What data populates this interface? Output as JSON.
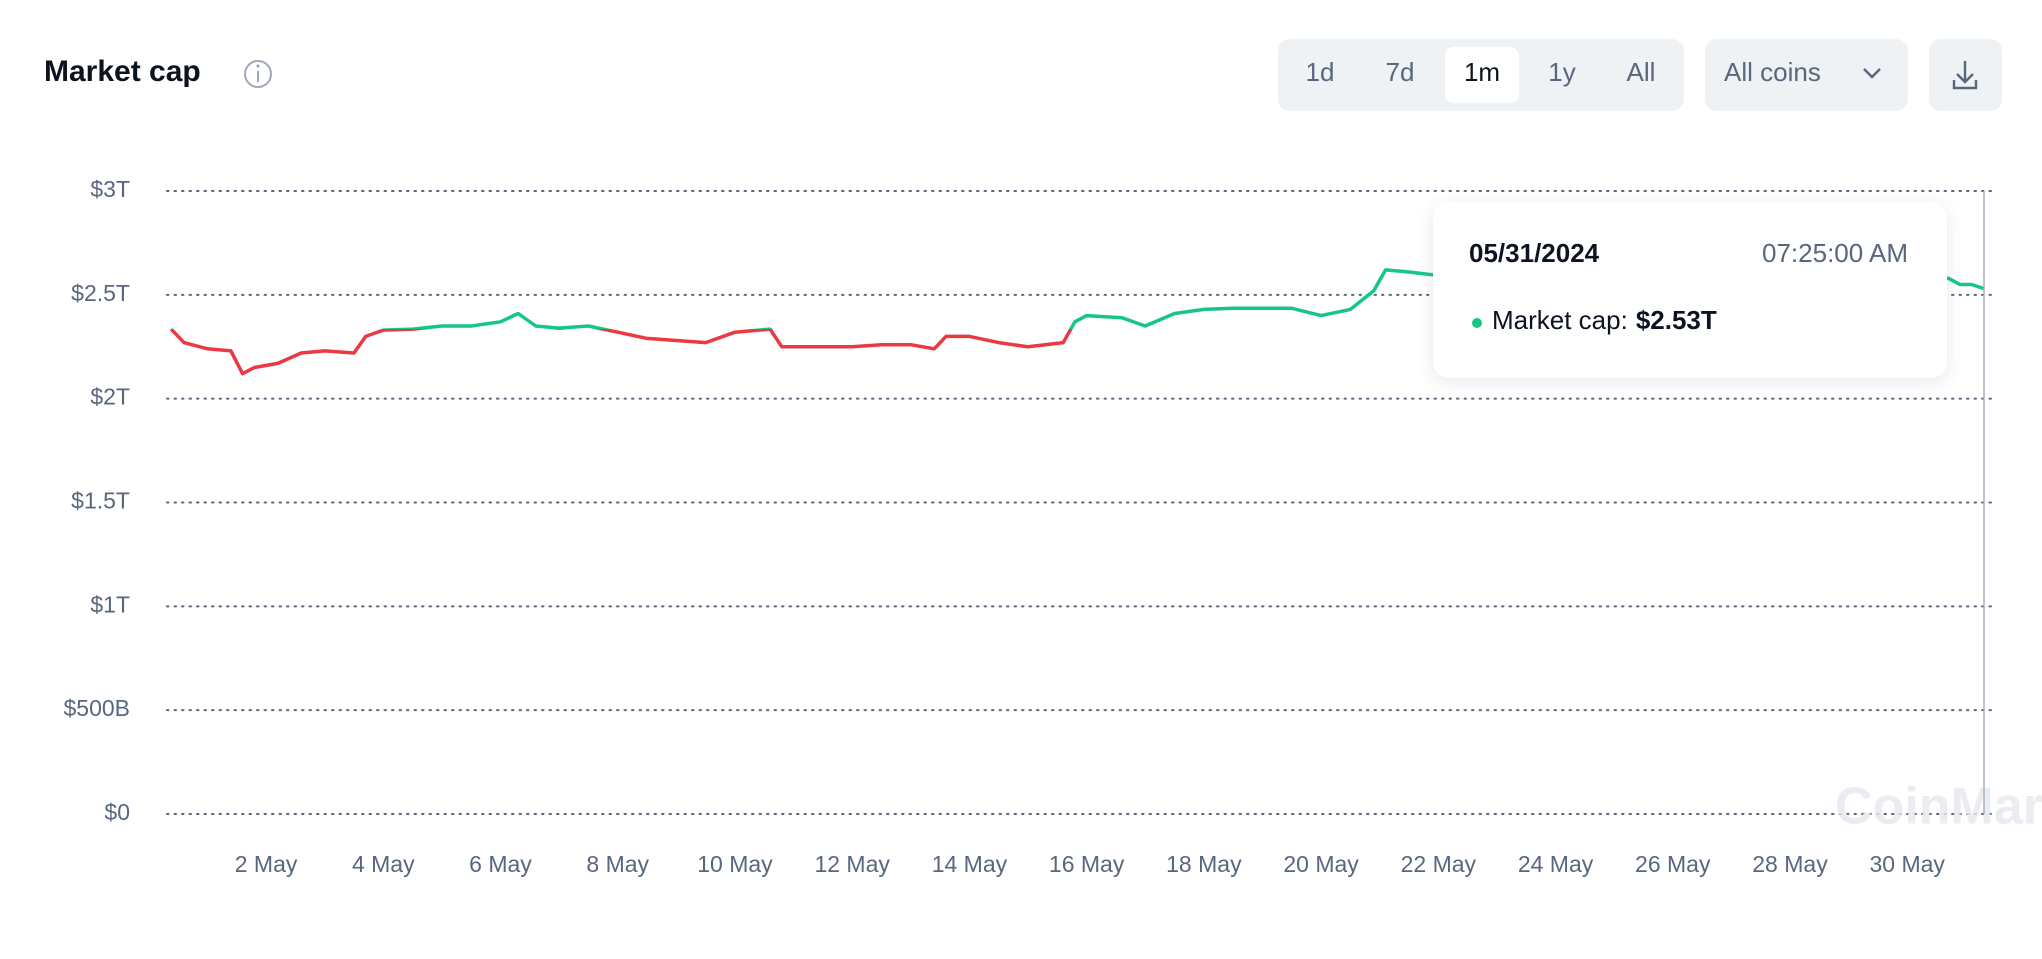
{
  "header": {
    "title": "Market cap",
    "ranges": [
      "1d",
      "7d",
      "1m",
      "1y",
      "All"
    ],
    "selected_range": 2,
    "coin_filter": "All coins"
  },
  "chart_data": {
    "type": "line",
    "x": [
      0.38,
      0.6,
      1,
      1.4,
      1.6,
      1.8,
      2.2,
      2.6,
      3,
      3.5,
      3.7,
      4,
      4.5,
      5,
      5.5,
      6,
      6.3,
      6.6,
      7,
      7.5,
      8,
      8.5,
      9,
      9.5,
      10,
      10.6,
      10.8,
      11.5,
      12,
      12.5,
      13,
      13.4,
      13.6,
      14,
      14.5,
      15,
      15.6,
      15.8,
      16,
      16.6,
      17,
      17.5,
      18,
      18.5,
      19,
      19.5,
      20,
      20.5,
      20.9,
      21.1,
      21.5,
      21.8,
      22.5,
      23,
      24,
      25,
      26,
      27,
      28,
      29,
      30,
      30.7,
      30.9,
      31.1,
      31.31
    ],
    "values": [
      2335000000000.0,
      2270000000000.0,
      2240000000000.0,
      2230000000000.0,
      2120000000000.0,
      2150000000000.0,
      2170000000000.0,
      2220000000000.0,
      2230000000000.0,
      2220000000000.0,
      2300000000000.0,
      2330000000000.0,
      2335000000000.0,
      2350000000000.0,
      2350000000000.0,
      2370000000000.0,
      2410000000000.0,
      2350000000000.0,
      2340000000000.0,
      2350000000000.0,
      2320000000000.0,
      2290000000000.0,
      2280000000000.0,
      2270000000000.0,
      2320000000000.0,
      2335000000000.0,
      2250000000000.0,
      2250000000000.0,
      2250000000000.0,
      2260000000000.0,
      2260000000000.0,
      2240000000000.0,
      2300000000000.0,
      2300000000000.0,
      2270000000000.0,
      2250000000000.0,
      2270000000000.0,
      2370000000000.0,
      2400000000000.0,
      2390000000000.0,
      2350000000000.0,
      2410000000000.0,
      2430000000000.0,
      2435000000000.0,
      2435000000000.0,
      2435000000000.0,
      2400000000000.0,
      2430000000000.0,
      2520000000000.0,
      2620000000000.0,
      2610000000000.0,
      2600000000000.0,
      2580000000000.0,
      2560000000000.0,
      2550000000000.0,
      2570000000000.0,
      2580000000000.0,
      2600000000000.0,
      2580000000000.0,
      2560000000000.0,
      2550000000000.0,
      2580000000000.0,
      2550000000000.0,
      2550000000000.0,
      2530000000000.0
    ],
    "up_color": "#16c784",
    "down_color": "#ea3943",
    "xlim": [
      0.31,
      31.31
    ],
    "xticks": [
      {
        "value": 2,
        "label": "2 May"
      },
      {
        "value": 4,
        "label": "4 May"
      },
      {
        "value": 6,
        "label": "6 May"
      },
      {
        "value": 8,
        "label": "8 May"
      },
      {
        "value": 10,
        "label": "10 May"
      },
      {
        "value": 12,
        "label": "12 May"
      },
      {
        "value": 14,
        "label": "14 May"
      },
      {
        "value": 16,
        "label": "16 May"
      },
      {
        "value": 18,
        "label": "18 May"
      },
      {
        "value": 20,
        "label": "20 May"
      },
      {
        "value": 22,
        "label": "22 May"
      },
      {
        "value": 24,
        "label": "24 May"
      },
      {
        "value": 26,
        "label": "26 May"
      },
      {
        "value": 28,
        "label": "28 May"
      },
      {
        "value": 30,
        "label": "30 May"
      }
    ],
    "ylim": [
      0,
      3000000000000.0
    ],
    "yticks": [
      {
        "value": 0,
        "label": "$0"
      },
      {
        "value": 500000000000.0,
        "label": "$500B"
      },
      {
        "value": 1000000000000.0,
        "label": "$1T"
      },
      {
        "value": 1500000000000.0,
        "label": "$1.5T"
      },
      {
        "value": 2000000000000.0,
        "label": "$2T"
      },
      {
        "value": 2500000000000.0,
        "label": "$2.5T"
      },
      {
        "value": 3000000000000.0,
        "label": "$3T"
      }
    ],
    "grid": true,
    "tooltip": {
      "x": 31.31,
      "date": "05/31/2024",
      "time": "07:25:00 AM",
      "label": "Market cap:",
      "value": 2530000000000.0,
      "value_label": "$2.53T"
    },
    "watermark": "CoinMarketCap"
  }
}
